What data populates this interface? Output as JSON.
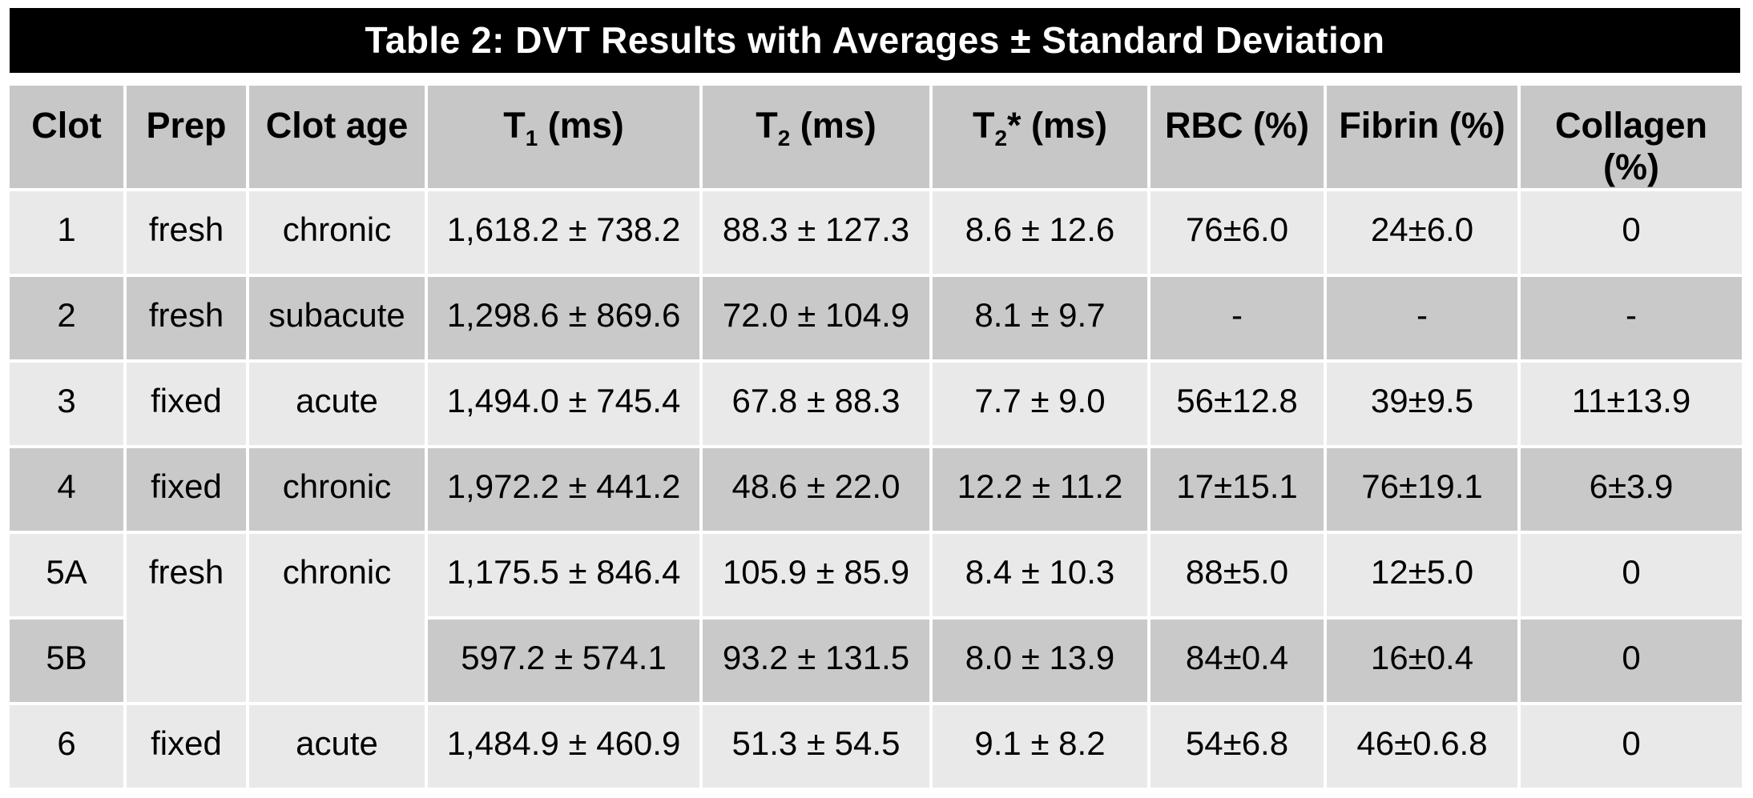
{
  "title": "Table 2: DVT Results with Averages ± Standard Deviation",
  "colors": {
    "title_bg": "#000000",
    "title_text": "#ffffff",
    "header_bg": "#c7c7c7",
    "row_light_bg": "#e9e9e9",
    "row_dark_bg": "#c9c9c9",
    "separator": "#ffffff",
    "text": "#000000"
  },
  "header": {
    "clot": "Clot",
    "prep": "Prep",
    "clot_age": "Clot age",
    "t1": {
      "base": "T",
      "sub": "1",
      "rest": " (ms)"
    },
    "t2": {
      "base": "T",
      "sub": "2",
      "rest": " (ms)"
    },
    "t2star": {
      "base": "T",
      "sub": "2",
      "rest": "* (ms)"
    },
    "rbc": "RBC (%)",
    "fibrin": "Fibrin (%)",
    "collagen": "Collagen (%)"
  },
  "rows": [
    {
      "clot": "1",
      "prep": "fresh",
      "age": "chronic",
      "t1": "1,618.2 ± 738.2",
      "t2": "88.3 ± 127.3",
      "t2star": "8.6 ± 12.6",
      "rbc": "76±6.0",
      "fibrin": "24±6.0",
      "collagen": "0"
    },
    {
      "clot": "2",
      "prep": "fresh",
      "age": "subacute",
      "t1": "1,298.6 ± 869.6",
      "t2": "72.0 ± 104.9",
      "t2star": "8.1 ± 9.7",
      "rbc": "-",
      "fibrin": "-",
      "collagen": "-"
    },
    {
      "clot": "3",
      "prep": "fixed",
      "age": "acute",
      "t1": "1,494.0 ± 745.4",
      "t2": "67.8 ± 88.3",
      "t2star": "7.7 ± 9.0",
      "rbc": "56±12.8",
      "fibrin": "39±9.5",
      "collagen": "11±13.9"
    },
    {
      "clot": "4",
      "prep": "fixed",
      "age": "chronic",
      "t1": "1,972.2 ± 441.2",
      "t2": "48.6 ± 22.0",
      "t2star": "12.2 ± 11.2",
      "rbc": "17±15.1",
      "fibrin": "76±19.1",
      "collagen": "6±3.9"
    },
    {
      "clot": "5A",
      "prep": "fresh",
      "age": "chronic",
      "t1": "1,175.5 ± 846.4",
      "t2": "105.9 ± 85.9",
      "t2star": "8.4 ± 10.3",
      "rbc": "88±5.0",
      "fibrin": "12±5.0",
      "collagen": "0"
    },
    {
      "clot": "5B",
      "t1": "597.2 ± 574.1",
      "t2": "93.2 ± 131.5",
      "t2star": "8.0 ± 13.9",
      "rbc": "84±0.4",
      "fibrin": "16±0.4",
      "collagen": "0"
    },
    {
      "clot": "6",
      "prep": "fixed",
      "age": "acute",
      "t1": "1,484.9 ± 460.9",
      "t2": "51.3 ± 54.5",
      "t2star": "9.1 ± 8.2",
      "rbc": "54±6.8",
      "fibrin": "46±0.6.8",
      "collagen": "0"
    }
  ]
}
